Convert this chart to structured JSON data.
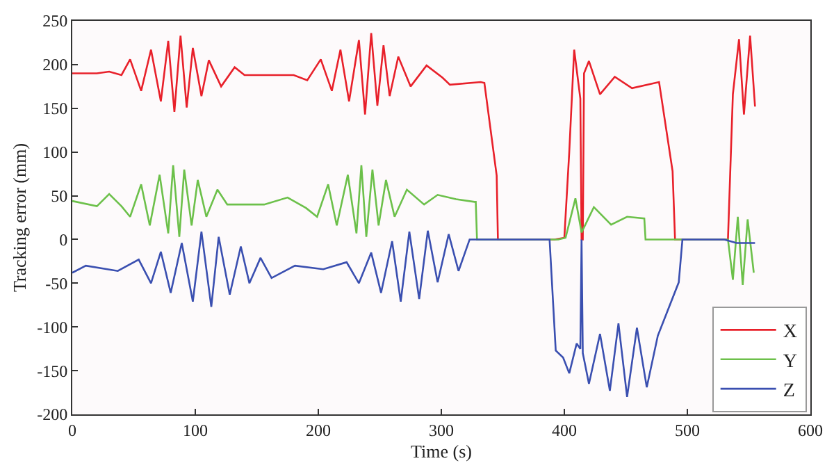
{
  "chart_data": {
    "type": "line",
    "xlabel": "Time (s)",
    "ylabel": "Tracking error (mm)",
    "xlim": [
      0,
      600
    ],
    "xticks": [
      0,
      100,
      200,
      300,
      400,
      500,
      600
    ],
    "ylim": [
      -200,
      250
    ],
    "yticks": [
      -200,
      -150,
      -100,
      -50,
      0,
      50,
      100,
      150,
      200,
      250
    ],
    "legend": "bottom right",
    "marker": "none",
    "line_style": "solid",
    "series": [
      {
        "name": "X",
        "color": "#e8202a",
        "x": [
          0,
          20,
          30,
          40,
          47,
          56,
          64,
          72,
          78,
          83,
          88,
          93,
          98,
          105,
          111,
          121,
          132,
          140,
          160,
          180,
          191,
          202,
          211,
          218,
          225,
          233,
          238,
          243,
          248,
          253,
          258,
          265,
          275,
          288,
          301,
          307,
          332,
          335,
          345,
          346,
          370,
          392,
          400,
          404,
          408,
          413,
          414,
          415,
          416,
          420,
          429,
          441,
          455,
          477,
          488,
          490,
          510,
          533,
          537,
          542,
          546,
          551,
          555
        ],
        "values": [
          190,
          190,
          192,
          188,
          206,
          170,
          217,
          158,
          227,
          146,
          233,
          151,
          219,
          164,
          205,
          175,
          197,
          188,
          188,
          188,
          182,
          206,
          170,
          217,
          158,
          228,
          143,
          236,
          153,
          222,
          164,
          209,
          175,
          199,
          185,
          177,
          180,
          179,
          73,
          0,
          0,
          0,
          2,
          100,
          217,
          161,
          0,
          0,
          190,
          204,
          166,
          186,
          173,
          180,
          78,
          0,
          0,
          0,
          166,
          229,
          143,
          233,
          152
        ]
      },
      {
        "name": "Y",
        "color": "#6cc04a",
        "x": [
          0,
          20,
          30,
          40,
          47,
          56,
          63,
          71,
          78,
          82,
          87,
          91,
          97,
          102,
          109,
          118,
          126,
          156,
          175,
          190,
          199,
          208,
          215,
          224,
          231,
          235,
          239,
          244,
          249,
          255,
          262,
          272,
          286,
          297,
          312,
          327,
          328,
          329,
          360,
          395,
          401,
          409,
          414,
          424,
          438,
          451,
          465,
          466,
          500,
          533,
          537,
          541,
          545,
          549,
          554
        ],
        "values": [
          44,
          38,
          52,
          38,
          26,
          63,
          16,
          74,
          7,
          85,
          3,
          80,
          16,
          68,
          26,
          57,
          40,
          40,
          48,
          36,
          26,
          63,
          16,
          74,
          7,
          85,
          3,
          80,
          16,
          68,
          26,
          57,
          40,
          51,
          46,
          43,
          43,
          0,
          0,
          0,
          2,
          47,
          8,
          37,
          17,
          26,
          24,
          0,
          0,
          0,
          -46,
          26,
          -52,
          23,
          -38
        ]
      },
      {
        "name": "Z",
        "color": "#3a4fb0",
        "x": [
          0,
          11,
          37,
          54,
          64,
          72,
          80,
          89,
          98,
          105,
          113,
          119,
          128,
          137,
          144,
          153,
          162,
          181,
          204,
          223,
          233,
          243,
          251,
          260,
          267,
          274,
          282,
          289,
          297,
          306,
          314,
          323,
          360,
          388,
          393,
          399,
          404,
          410,
          413,
          414,
          415,
          420,
          429,
          437,
          444,
          451,
          459,
          467,
          476,
          493,
          496,
          530,
          540,
          555
        ],
        "values": [
          -38,
          -30,
          -36,
          -23,
          -50,
          -14,
          -61,
          -4,
          -71,
          9,
          -77,
          3,
          -63,
          -8,
          -50,
          -21,
          -44,
          -30,
          -34,
          -26,
          -50,
          -15,
          -61,
          -2,
          -71,
          9,
          -68,
          10,
          -49,
          6,
          -36,
          0,
          0,
          0,
          -127,
          -135,
          -153,
          -119,
          -125,
          0,
          -130,
          -165,
          -108,
          -173,
          -96,
          -180,
          -101,
          -169,
          -110,
          -49,
          0,
          0,
          -4,
          -4
        ]
      }
    ]
  }
}
